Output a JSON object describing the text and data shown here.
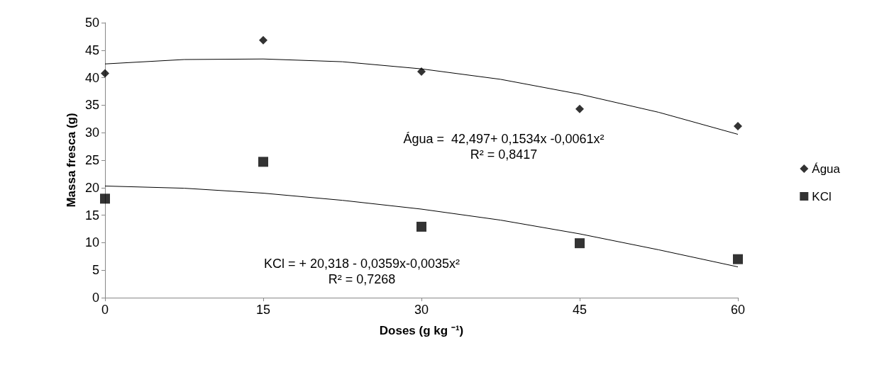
{
  "chart_data": {
    "type": "scatter",
    "xlabel": "Doses (g kg ⁻¹)",
    "ylabel": "Massa fresca (g)",
    "x": [
      0,
      15,
      30,
      45,
      60
    ],
    "series": [
      {
        "name": "Água",
        "color": "#000000",
        "marker": "diamond",
        "values": [
          40.8,
          46.8,
          41.1,
          34.3,
          31.2
        ]
      },
      {
        "name": "KCl",
        "color": "#000000",
        "marker": "square",
        "values": [
          18.0,
          24.7,
          12.9,
          9.9,
          7.0
        ]
      },
      {
        "type": "line",
        "color": "#000000",
        "marker": "none",
        "x": [
          0,
          7.5,
          15,
          22.5,
          30,
          37.5,
          45,
          52.5,
          60
        ],
        "values": [
          42.5,
          43.3,
          43.4,
          42.9,
          41.6,
          39.7,
          37.0,
          33.7,
          29.7
        ]
      },
      {
        "type": "line",
        "color": "#000000",
        "marker": "none",
        "x": [
          0,
          7.5,
          15,
          22.5,
          30,
          37.5,
          45,
          52.5,
          60
        ],
        "values": [
          20.3,
          19.9,
          19.0,
          17.7,
          16.1,
          14.1,
          11.6,
          8.7,
          5.6
        ]
      }
    ],
    "xlim": [
      0,
      60
    ],
    "xticks": [
      0,
      15,
      30,
      45,
      60
    ],
    "ylim": [
      0,
      50
    ],
    "yticks": [
      0,
      5,
      10,
      15,
      20,
      25,
      30,
      35,
      40,
      45,
      50
    ],
    "grid": false,
    "legend": "right",
    "annotations": [
      "Água =  42,497+ 0,1534x -0,0061x²\nR² = 0,8417",
      "KCl = + 20,318 - 0,0359x-0,0035x²\nR² = 0,7268"
    ]
  }
}
